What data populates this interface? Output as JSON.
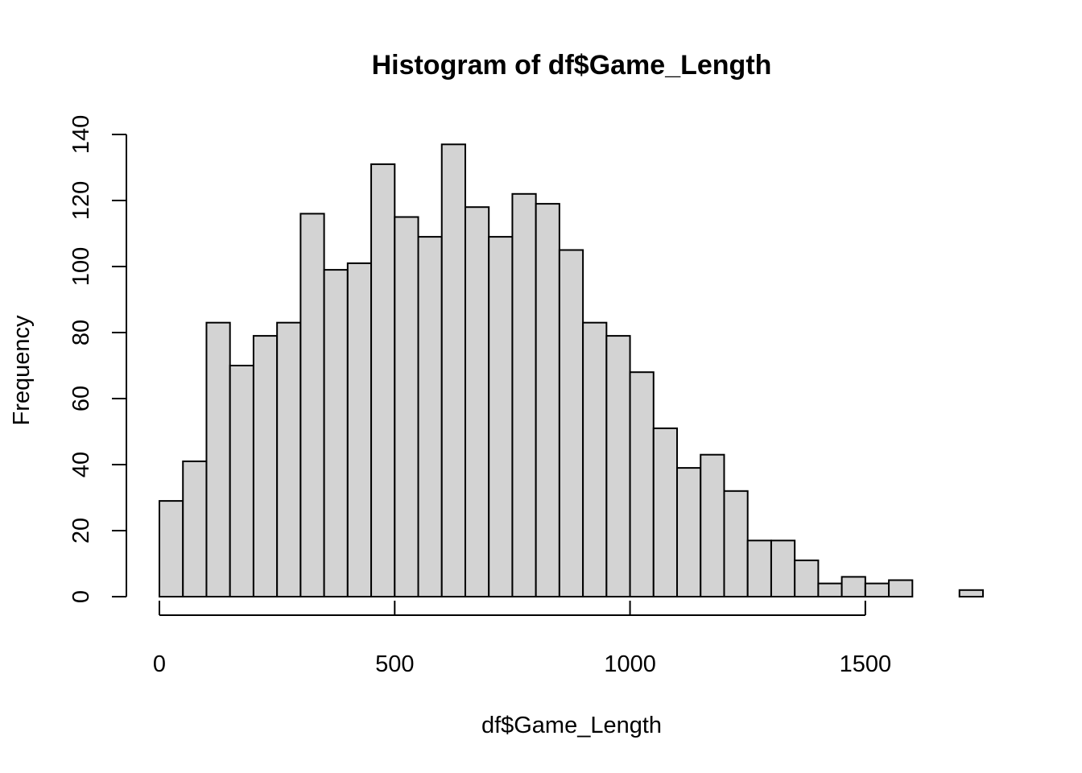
{
  "chart_data": {
    "type": "bar",
    "title": "Histogram of df$Game_Length",
    "xlabel": "df$Game_Length",
    "ylabel": "Frequency",
    "bin_width": 50,
    "bins": [
      [
        0,
        50
      ],
      [
        50,
        100
      ],
      [
        100,
        150
      ],
      [
        150,
        200
      ],
      [
        200,
        250
      ],
      [
        250,
        300
      ],
      [
        300,
        350
      ],
      [
        350,
        400
      ],
      [
        400,
        450
      ],
      [
        450,
        500
      ],
      [
        500,
        550
      ],
      [
        550,
        600
      ],
      [
        600,
        650
      ],
      [
        650,
        700
      ],
      [
        700,
        750
      ],
      [
        750,
        800
      ],
      [
        800,
        850
      ],
      [
        850,
        900
      ],
      [
        900,
        950
      ],
      [
        950,
        1000
      ],
      [
        1000,
        1050
      ],
      [
        1050,
        1100
      ],
      [
        1100,
        1150
      ],
      [
        1150,
        1200
      ],
      [
        1200,
        1250
      ],
      [
        1250,
        1300
      ],
      [
        1300,
        1350
      ],
      [
        1350,
        1400
      ],
      [
        1400,
        1450
      ],
      [
        1450,
        1500
      ],
      [
        1500,
        1550
      ],
      [
        1550,
        1600
      ],
      [
        1600,
        1650
      ],
      [
        1650,
        1700
      ],
      [
        1700,
        1750
      ]
    ],
    "values": [
      29,
      41,
      83,
      70,
      79,
      83,
      116,
      99,
      101,
      131,
      115,
      109,
      137,
      118,
      109,
      122,
      119,
      105,
      83,
      79,
      68,
      51,
      39,
      43,
      32,
      17,
      17,
      11,
      4,
      6,
      4,
      5,
      0,
      0,
      2
    ],
    "xlim": [
      0,
      1750
    ],
    "ylim": [
      0,
      140
    ],
    "x_ticks": [
      0,
      500,
      1000,
      1500
    ],
    "x_tick_labels": [
      "0",
      "500",
      "1000",
      "1500"
    ],
    "y_ticks": [
      0,
      20,
      40,
      60,
      80,
      100,
      120,
      140
    ],
    "y_tick_labels": [
      "0",
      "20",
      "40",
      "60",
      "80",
      "100",
      "120",
      "140"
    ],
    "bar_fill": "#d3d3d3",
    "bar_stroke": "#000000",
    "grid": false,
    "legend": "none"
  }
}
